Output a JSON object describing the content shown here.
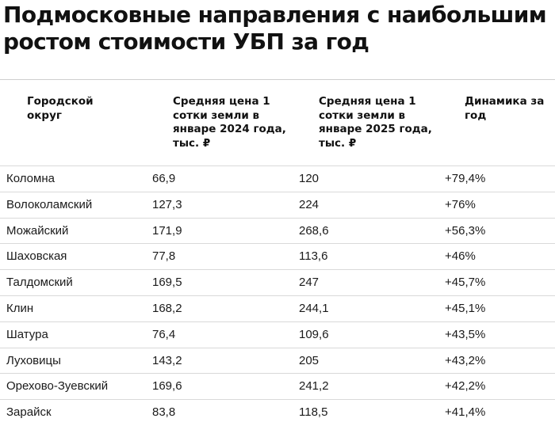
{
  "title": "Подмосковные направления с наибольшим ростом стоимости УБП за год",
  "headers": [
    "Городской округ",
    "Средняя цена 1 сотки земли в январе 2024 года, тыс. ₽",
    "Средняя цена 1 сотки земли в январе 2025 года, тыс. ₽",
    "Динамика за год"
  ],
  "rows": [
    [
      "Коломна",
      "66,9",
      "120",
      "+79,4%"
    ],
    [
      "Волоколамский",
      "127,3",
      "224",
      "+76%"
    ],
    [
      "Можайский",
      "171,9",
      "268,6",
      "+56,3%"
    ],
    [
      "Шаховская",
      "77,8",
      "113,6",
      "+46%"
    ],
    [
      "Талдомский",
      "169,5",
      "247",
      "+45,7%"
    ],
    [
      "Клин",
      "168,2",
      "244,1",
      "+45,1%"
    ],
    [
      "Шатура",
      "76,4",
      "109,6",
      "+43,5%"
    ],
    [
      "Луховицы",
      "143,2",
      "205",
      "+43,2%"
    ],
    [
      "Орехово-Зуевский",
      "169,6",
      "241,2",
      "+42,2%"
    ],
    [
      "Зарайск",
      "83,8",
      "118,5",
      "+41,4%"
    ]
  ]
}
